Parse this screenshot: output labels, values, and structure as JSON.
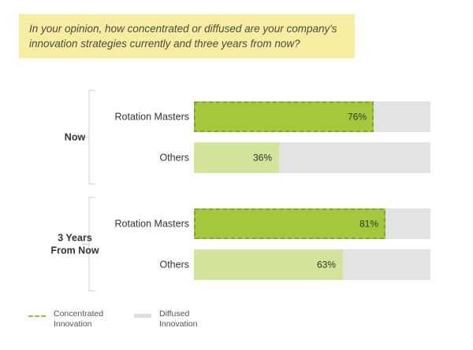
{
  "question": "In your opinion, how concentrated or diffused are your company's innovation strategies currently and three years from now?",
  "colors": {
    "rotation_masters": "#a3c83b",
    "others": "#d2e39a",
    "diffused": "#e3e3e3",
    "concentrated_border": "#7ea72e"
  },
  "chart_data": {
    "type": "bar",
    "orientation": "horizontal",
    "stacked_to": 100,
    "unit": "%",
    "groups": [
      {
        "label": "Now",
        "bars": [
          {
            "label": "Rotation Masters",
            "value": 76,
            "value_label": "76%",
            "style": "concentrated"
          },
          {
            "label": "Others",
            "value": 36,
            "value_label": "36%",
            "style": "plain"
          }
        ]
      },
      {
        "label": "3 Years From Now",
        "bars": [
          {
            "label": "Rotation Masters",
            "value": 81,
            "value_label": "81%",
            "style": "concentrated"
          },
          {
            "label": "Others",
            "value": 63,
            "value_label": "63%",
            "style": "plain"
          }
        ]
      }
    ],
    "legend": [
      {
        "label": "Concentrated Innovation",
        "lines": [
          "Concentrated",
          "Innovation"
        ],
        "marker": "dashed-line"
      },
      {
        "label": "Diffused Innovation",
        "lines": [
          "Diffused",
          "Innovation"
        ],
        "marker": "solid-gray"
      }
    ],
    "legend_position": "bottom-left",
    "grid": false
  }
}
